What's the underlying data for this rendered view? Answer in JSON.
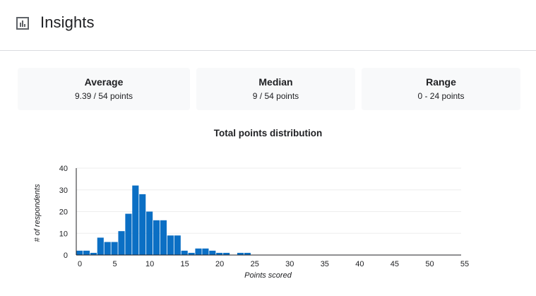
{
  "header": {
    "title": "Insights",
    "icon": "bar-chart-icon"
  },
  "stats": {
    "average": {
      "label": "Average",
      "value": "9.39 / 54 points"
    },
    "median": {
      "label": "Median",
      "value": "9 / 54 points"
    },
    "range": {
      "label": "Range",
      "value": "0 - 24 points"
    }
  },
  "colors": {
    "bar": "#0b6fc4",
    "card_bg": "#f8f9fa",
    "grid": "#eeeeee",
    "axis": "#202124"
  },
  "chart_data": {
    "type": "bar",
    "title": "Total points distribution",
    "xlabel": "Points scored",
    "ylabel": "# of respondents",
    "xlim": [
      0,
      55
    ],
    "ylim": [
      0,
      40
    ],
    "x_ticks": [
      0,
      5,
      10,
      15,
      20,
      25,
      30,
      35,
      40,
      45,
      50,
      55
    ],
    "y_ticks": [
      0,
      10,
      20,
      30,
      40
    ],
    "grid": true,
    "categories": [
      0,
      1,
      2,
      3,
      4,
      5,
      6,
      7,
      8,
      9,
      10,
      11,
      12,
      13,
      14,
      15,
      16,
      17,
      18,
      19,
      20,
      21,
      22,
      23,
      24
    ],
    "values": [
      2,
      2,
      1,
      8,
      6,
      6,
      11,
      19,
      32,
      28,
      20,
      16,
      16,
      9,
      9,
      2,
      1,
      3,
      3,
      2,
      1,
      1,
      0,
      1,
      1
    ]
  }
}
